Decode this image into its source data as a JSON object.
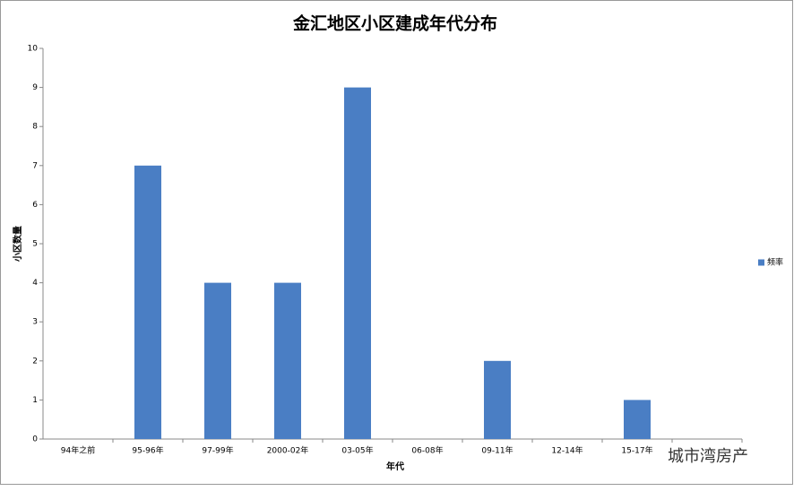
{
  "chart_data": {
    "type": "bar",
    "title": "金汇地区小区建成年代分布",
    "x_label": "年代",
    "y_label": "小区数量",
    "categories": [
      "94年之前",
      "95-96年",
      "97-99年",
      "2000-02年",
      "03-05年",
      "06-08年",
      "09-11年",
      "12-14年",
      "15-17年",
      null
    ],
    "series": [
      {
        "name": "频率",
        "color": "#4a7ec4",
        "values": [
          0,
          7,
          4,
          4,
          9,
          0,
          2,
          0,
          1,
          0
        ]
      }
    ],
    "ylim": [
      0,
      10
    ],
    "yticks": [
      0,
      1,
      2,
      3,
      4,
      5,
      6,
      7,
      8,
      9,
      10
    ],
    "grid": false,
    "legend": "right"
  },
  "watermark": "城市湾房产"
}
